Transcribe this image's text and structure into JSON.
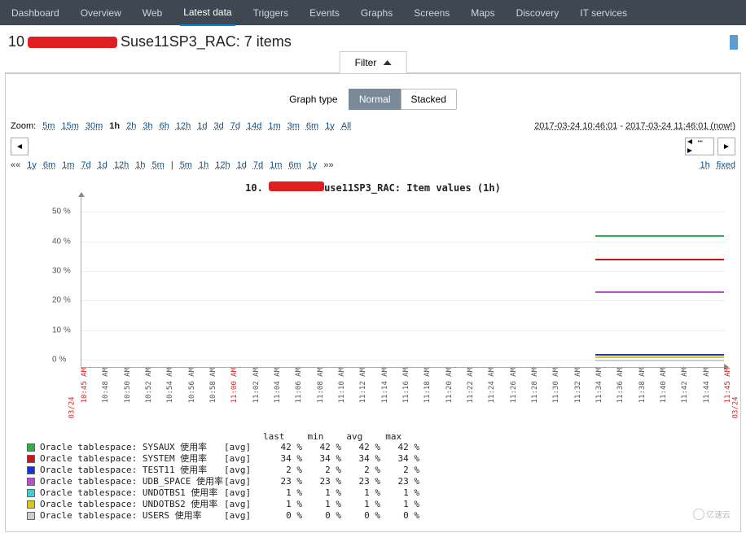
{
  "nav": {
    "items": [
      {
        "label": "Dashboard"
      },
      {
        "label": "Overview"
      },
      {
        "label": "Web"
      },
      {
        "label": "Latest data"
      },
      {
        "label": "Triggers"
      },
      {
        "label": "Events"
      },
      {
        "label": "Graphs"
      },
      {
        "label": "Screens"
      },
      {
        "label": "Maps"
      },
      {
        "label": "Discovery"
      },
      {
        "label": "IT services"
      }
    ],
    "active_index": 3
  },
  "title": {
    "prefix": "10",
    "suffix": "Suse11SP3_RAC: 7 items"
  },
  "filter": {
    "label": "Filter"
  },
  "graph_type": {
    "label": "Graph type",
    "normal": "Normal",
    "stacked": "Stacked",
    "active": "normal"
  },
  "zoom": {
    "label": "Zoom:",
    "options": [
      "5m",
      "15m",
      "30m",
      "1h",
      "2h",
      "3h",
      "6h",
      "12h",
      "1d",
      "3d",
      "7d",
      "14d",
      "1m",
      "3m",
      "6m",
      "1y",
      "All"
    ],
    "active": "1h"
  },
  "time_range": {
    "from": "2017-03-24 10:46:01",
    "to": "2017-03-24 11:46:01 (now!)",
    "sep": " - "
  },
  "fine_nav": {
    "left_back": [
      "1y",
      "6m",
      "1m",
      "7d",
      "1d",
      "12h",
      "1h",
      "5m"
    ],
    "right_fwd": [
      "5m",
      "1h",
      "12h",
      "1d",
      "7d",
      "1m",
      "6m",
      "1y"
    ],
    "ll": "««",
    "rr": "»»",
    "sep": "|",
    "right_labels": [
      "1h",
      "fixed"
    ]
  },
  "chart": {
    "title_prefix": "10.",
    "title_suffix": "use11SP3_RAC: Item values (1h)",
    "y_ticks": [
      0,
      10,
      20,
      30,
      40,
      50
    ],
    "y_max": 55,
    "y_unit": "%",
    "x_ticks": [
      "10:45 AM",
      "10:48 AM",
      "10:50 AM",
      "10:52 AM",
      "10:54 AM",
      "10:56 AM",
      "10:58 AM",
      "11:00 AM",
      "11:02 AM",
      "11:04 AM",
      "11:06 AM",
      "11:08 AM",
      "11:10 AM",
      "11:12 AM",
      "11:14 AM",
      "11:16 AM",
      "11:18 AM",
      "11:20 AM",
      "11:22 AM",
      "11:24 AM",
      "11:26 AM",
      "11:28 AM",
      "11:30 AM",
      "11:32 AM",
      "11:34 AM",
      "11:36 AM",
      "11:38 AM",
      "11:40 AM",
      "11:42 AM",
      "11:44 AM",
      "11:45 AM"
    ],
    "x_red_indices": [
      0,
      7,
      30
    ],
    "date_label": "03/24",
    "data_start_pct": 80,
    "series": [
      {
        "name": "Oracle tablespace: SYSAUX 使用率",
        "agg": "[avg]",
        "last": "42 %",
        "min": "42 %",
        "avg": "42 %",
        "max": "42 %",
        "color": "#2bb24c",
        "value": 42
      },
      {
        "name": "Oracle tablespace: SYSTEM 使用率",
        "agg": "[avg]",
        "last": "34 %",
        "min": "34 %",
        "avg": "34 %",
        "max": "34 %",
        "color": "#cf1414",
        "value": 34
      },
      {
        "name": "Oracle tablespace: TEST11 使用率",
        "agg": "[avg]",
        "last": "2 %",
        "min": "2 %",
        "avg": "2 %",
        "max": "2 %",
        "color": "#1a2fd6",
        "value": 2
      },
      {
        "name": "Oracle tablespace: UDB_SPACE 使用率",
        "agg": "[avg]",
        "last": "23 %",
        "min": "23 %",
        "avg": "23 %",
        "max": "23 %",
        "color": "#b84fd0",
        "value": 23
      },
      {
        "name": "Oracle tablespace: UNDOTBS1 使用率",
        "agg": "[avg]",
        "last": "1 %",
        "min": "1 %",
        "avg": "1 %",
        "max": "1 %",
        "color": "#3fcfcf",
        "value": 1
      },
      {
        "name": "Oracle tablespace: UNDOTBS2 使用率",
        "agg": "[avg]",
        "last": "1 %",
        "min": "1 %",
        "avg": "1 %",
        "max": "1 %",
        "color": "#d6c81a",
        "value": 1
      },
      {
        "name": "Oracle tablespace: USERS 使用率",
        "agg": "[avg]",
        "last": "0 %",
        "min": "0 %",
        "avg": "0 %",
        "max": "0 %",
        "color": "#cccccc",
        "value": 0
      }
    ],
    "legend_headers": [
      "last",
      "min",
      "avg",
      "max"
    ]
  },
  "watermark": "亿速云"
}
